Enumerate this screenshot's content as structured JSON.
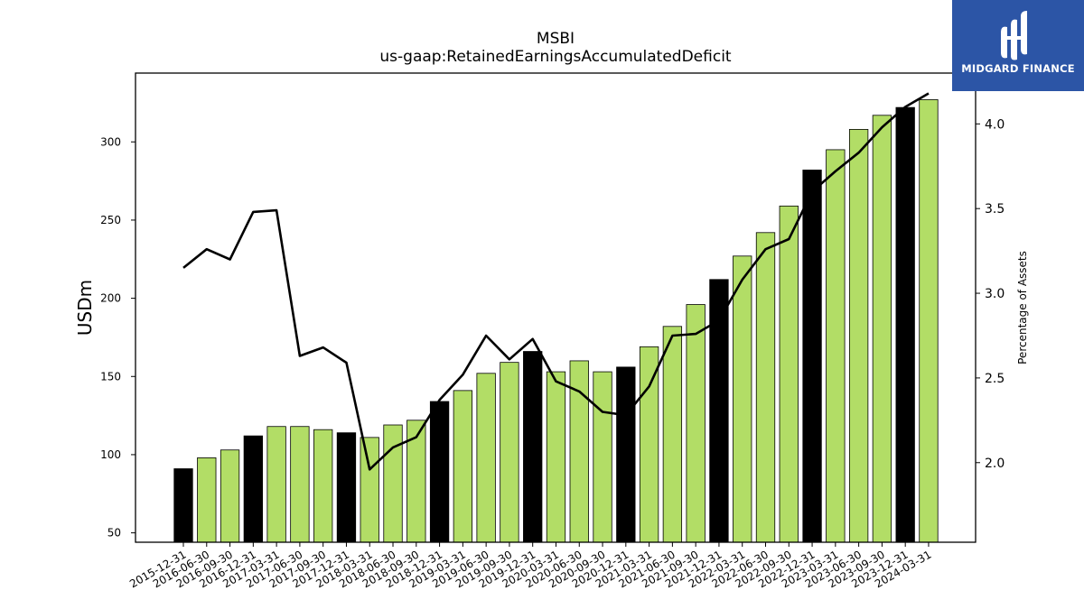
{
  "chart_data": {
    "type": "bar",
    "title": "MSBI",
    "subtitle": "us-gaap:RetainedEarningsAccumulatedDeficit",
    "ylabel": "USDm",
    "ylabel_right": "Percentage of Assets",
    "ylim": [
      44,
      344
    ],
    "ylim_right": [
      1.53,
      4.3
    ],
    "yticks": [
      50,
      100,
      150,
      200,
      250,
      300
    ],
    "yticks_right": [
      2.0,
      2.5,
      3.0,
      3.5,
      4.0
    ],
    "yticks_right_labels": [
      "2.0",
      "2.5",
      "3.0",
      "3.5",
      "4.0"
    ],
    "grid": false,
    "categories": [
      "2015-12-31",
      "2016-06-30",
      "2016-09-30",
      "2016-12-31",
      "2017-03-31",
      "2017-06-30",
      "2017-09-30",
      "2017-12-31",
      "2018-03-31",
      "2018-06-30",
      "2018-09-30",
      "2018-12-31",
      "2019-03-31",
      "2019-06-30",
      "2019-09-30",
      "2019-12-31",
      "2020-03-31",
      "2020-06-30",
      "2020-09-30",
      "2020-12-31",
      "2021-03-31",
      "2021-06-30",
      "2021-09-30",
      "2021-12-31",
      "2022-03-31",
      "2022-06-30",
      "2022-09-30",
      "2022-12-31",
      "2023-03-31",
      "2023-06-30",
      "2023-09-30",
      "2023-12-31",
      "2024-03-31"
    ],
    "series": [
      {
        "kind": "bar",
        "values": [
          91,
          98,
          103,
          112,
          118,
          118,
          116,
          114,
          111,
          119,
          122,
          134,
          141,
          152,
          159,
          166,
          153,
          160,
          153,
          156,
          169,
          182,
          196,
          212,
          227,
          242,
          259,
          282,
          295,
          308,
          317,
          322,
          327
        ]
      },
      {
        "kind": "line",
        "axis": "right",
        "values": [
          3.15,
          3.26,
          3.2,
          3.48,
          3.49,
          2.63,
          2.68,
          2.59,
          1.96,
          2.09,
          2.15,
          2.37,
          2.52,
          2.75,
          2.61,
          2.73,
          2.48,
          2.42,
          2.3,
          2.28,
          2.45,
          2.75,
          2.76,
          2.84,
          3.08,
          3.26,
          3.32,
          3.6,
          3.72,
          3.83,
          3.98,
          4.1,
          4.18
        ]
      }
    ],
    "highlight_categories": [
      "2015-12-31",
      "2016-12-31",
      "2017-12-31",
      "2018-12-31",
      "2019-12-31",
      "2020-12-31",
      "2021-12-31",
      "2022-12-31",
      "2023-12-31"
    ],
    "colors": {
      "bar": "#b2dd66",
      "bar_highlight": "#000000",
      "bar_edge": "#000000",
      "line": "#000000"
    }
  },
  "logo": {
    "text": "MIDGARD FINANCE",
    "background": "#2c55a6"
  }
}
